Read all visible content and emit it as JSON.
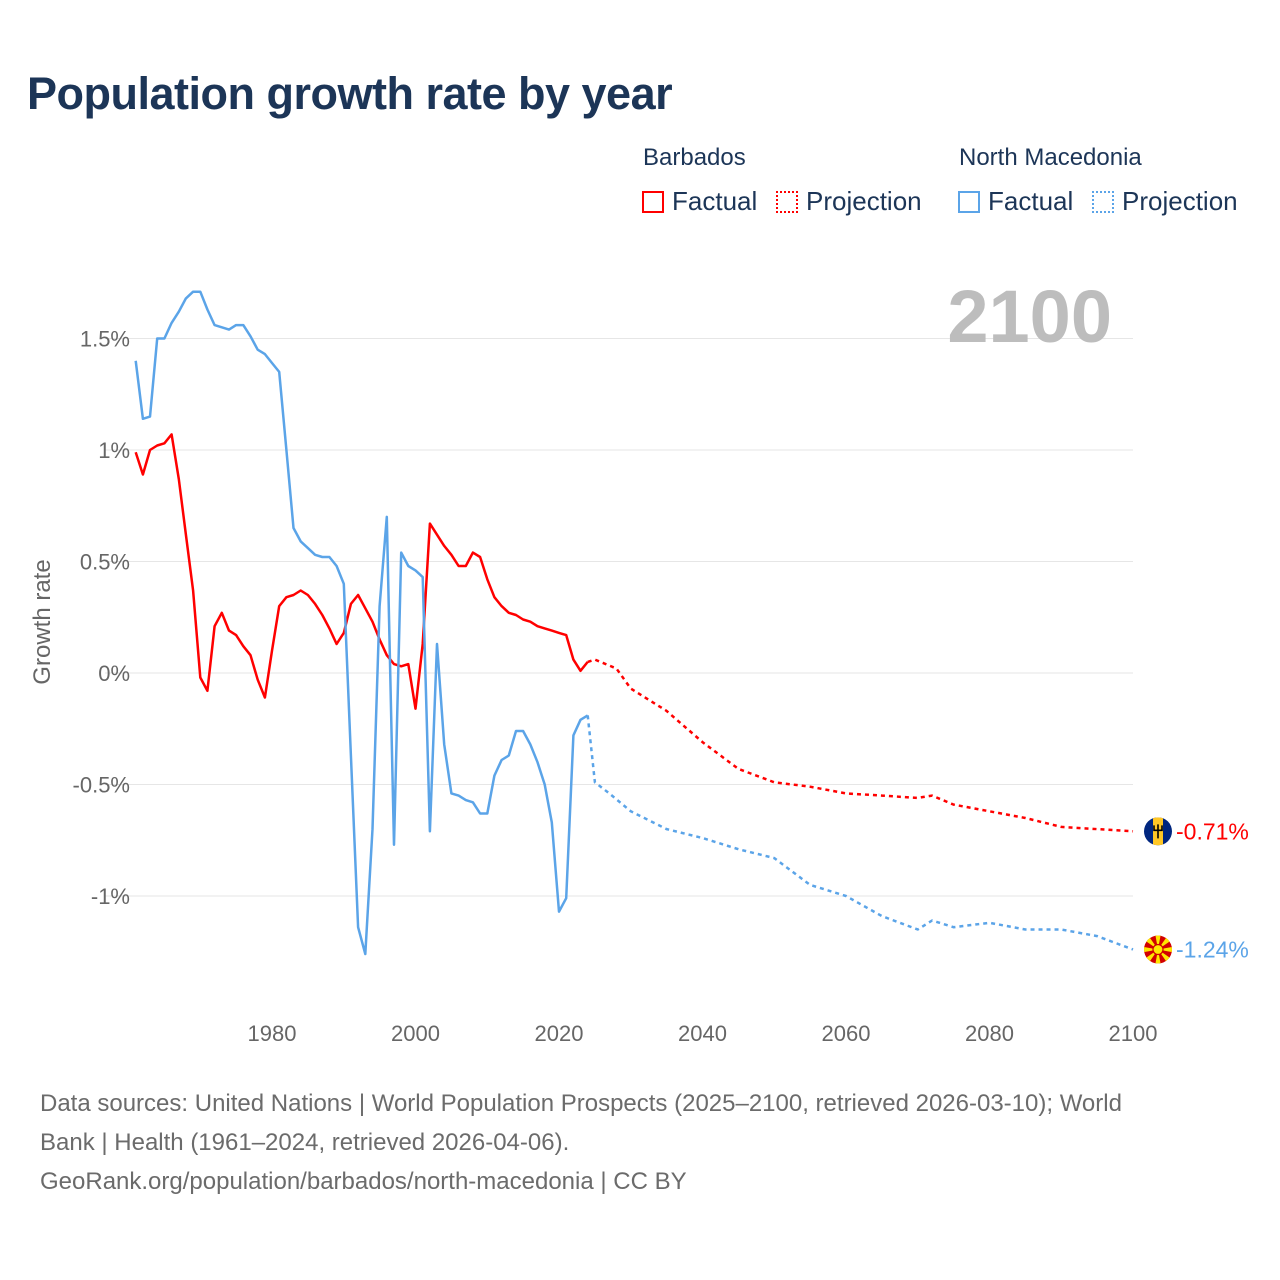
{
  "title": "Population growth rate by year",
  "legend": {
    "groups": [
      {
        "name": "Barbados",
        "factual": "Factual",
        "projection": "Projection",
        "color": "#ff0000"
      },
      {
        "name": "North Macedonia",
        "factual": "Factual",
        "projection": "Projection",
        "color": "#5ba4e8"
      }
    ]
  },
  "year_display": "2100",
  "footer": {
    "line1": "Data sources: United Nations | World Population Prospects (2025–2100, retrieved 2026-03-10); World",
    "line2": "Bank | Health (1961–2024, retrieved 2026-04-06).",
    "line3": "GeoRank.org/population/barbados/north-macedonia | CC BY"
  },
  "chart_data": {
    "type": "line",
    "title": "Population growth rate by year",
    "xlabel": "",
    "ylabel": "Growth rate",
    "xlim": [
      1961,
      2100
    ],
    "ylim": [
      -1.35,
      1.8
    ],
    "x_ticks": [
      1980,
      2000,
      2020,
      2040,
      2060,
      2080,
      2100
    ],
    "x_tick_labels": [
      "1980",
      "2000",
      "2020",
      "2040",
      "2060",
      "2080",
      "2100"
    ],
    "y_ticks": [
      1.5,
      1,
      0.5,
      0,
      -0.5,
      -1
    ],
    "y_tick_labels": [
      "1.5%",
      "1%",
      "0.5%",
      "0%",
      "-0.5%",
      "-1%"
    ],
    "grid": true,
    "legend_position": "top-right",
    "series": [
      {
        "name": "Barbados",
        "kind": "Factual",
        "color": "#ff0000",
        "x": [
          1961,
          1962,
          1963,
          1964,
          1965,
          1966,
          1967,
          1968,
          1969,
          1970,
          1971,
          1972,
          1973,
          1974,
          1975,
          1976,
          1977,
          1978,
          1979,
          1980,
          1981,
          1982,
          1983,
          1984,
          1985,
          1986,
          1987,
          1988,
          1989,
          1990,
          1991,
          1992,
          1993,
          1994,
          1995,
          1996,
          1997,
          1998,
          1999,
          2000,
          2001,
          2002,
          2003,
          2004,
          2005,
          2006,
          2007,
          2008,
          2009,
          2010,
          2011,
          2012,
          2013,
          2014,
          2015,
          2016,
          2017,
          2018,
          2019,
          2020,
          2021,
          2022,
          2023,
          2024
        ],
        "y": [
          0.99,
          0.89,
          1.0,
          1.02,
          1.03,
          1.07,
          0.87,
          0.62,
          0.37,
          -0.02,
          -0.08,
          0.21,
          0.27,
          0.19,
          0.17,
          0.12,
          0.08,
          -0.03,
          -0.11,
          0.1,
          0.3,
          0.34,
          0.35,
          0.37,
          0.35,
          0.31,
          0.26,
          0.2,
          0.13,
          0.18,
          0.31,
          0.35,
          0.29,
          0.23,
          0.15,
          0.08,
          0.04,
          0.03,
          0.04,
          -0.16,
          0.13,
          0.67,
          0.62,
          0.57,
          0.53,
          0.48,
          0.48,
          0.54,
          0.52,
          0.42,
          0.34,
          0.3,
          0.27,
          0.26,
          0.24,
          0.23,
          0.21,
          0.2,
          0.19,
          0.18,
          0.17,
          0.06,
          0.01,
          0.05
        ]
      },
      {
        "name": "Barbados",
        "kind": "Projection",
        "color": "#ff0000",
        "x": [
          2024,
          2025,
          2028,
          2030,
          2035,
          2040,
          2045,
          2050,
          2055,
          2060,
          2065,
          2070,
          2072,
          2075,
          2080,
          2085,
          2090,
          2095,
          2100
        ],
        "y": [
          0.05,
          0.06,
          0.02,
          -0.07,
          -0.17,
          -0.31,
          -0.43,
          -0.49,
          -0.51,
          -0.54,
          -0.55,
          -0.56,
          -0.55,
          -0.59,
          -0.62,
          -0.65,
          -0.69,
          -0.7,
          -0.71
        ]
      },
      {
        "name": "North Macedonia",
        "kind": "Factual",
        "color": "#5ba4e8",
        "x": [
          1961,
          1962,
          1963,
          1964,
          1965,
          1966,
          1967,
          1968,
          1969,
          1970,
          1971,
          1972,
          1973,
          1974,
          1975,
          1976,
          1977,
          1978,
          1979,
          1980,
          1981,
          1982,
          1983,
          1984,
          1985,
          1986,
          1987,
          1988,
          1989,
          1990,
          1991,
          1992,
          1993,
          1994,
          1995,
          1996,
          1997,
          1998,
          1999,
          2000,
          2001,
          2002,
          2003,
          2004,
          2005,
          2006,
          2007,
          2008,
          2009,
          2010,
          2011,
          2012,
          2013,
          2014,
          2015,
          2016,
          2017,
          2018,
          2019,
          2020,
          2021,
          2022,
          2023,
          2024
        ],
        "y": [
          1.4,
          1.14,
          1.15,
          1.5,
          1.5,
          1.57,
          1.62,
          1.68,
          1.71,
          1.71,
          1.63,
          1.56,
          1.55,
          1.54,
          1.56,
          1.56,
          1.51,
          1.45,
          1.43,
          1.39,
          1.35,
          1.0,
          0.65,
          0.59,
          0.56,
          0.53,
          0.52,
          0.52,
          0.48,
          0.4,
          -0.37,
          -1.14,
          -1.26,
          -0.7,
          0.3,
          0.7,
          -0.77,
          0.54,
          0.48,
          0.46,
          0.43,
          -0.71,
          0.13,
          -0.32,
          -0.54,
          -0.55,
          -0.57,
          -0.58,
          -0.63,
          -0.63,
          -0.46,
          -0.39,
          -0.37,
          -0.26,
          -0.26,
          -0.32,
          -0.4,
          -0.5,
          -0.67,
          -1.07,
          -1.01,
          -0.28,
          -0.21,
          -0.19
        ]
      },
      {
        "name": "North Macedonia",
        "kind": "Projection",
        "color": "#5ba4e8",
        "x": [
          2024,
          2025,
          2027,
          2030,
          2035,
          2040,
          2045,
          2050,
          2055,
          2060,
          2065,
          2070,
          2072,
          2075,
          2080,
          2085,
          2090,
          2095,
          2100
        ],
        "y": [
          -0.19,
          -0.49,
          -0.54,
          -0.62,
          -0.7,
          -0.74,
          -0.79,
          -0.83,
          -0.95,
          -1.0,
          -1.09,
          -1.15,
          -1.11,
          -1.14,
          -1.12,
          -1.15,
          -1.15,
          -1.18,
          -1.24
        ]
      }
    ],
    "end_labels": [
      {
        "series": "Barbados",
        "value": -0.71,
        "label": "-0.71%",
        "color": "#ff0000"
      },
      {
        "series": "North Macedonia",
        "value": -1.24,
        "label": "-1.24%",
        "color": "#5ba4e8"
      }
    ]
  }
}
